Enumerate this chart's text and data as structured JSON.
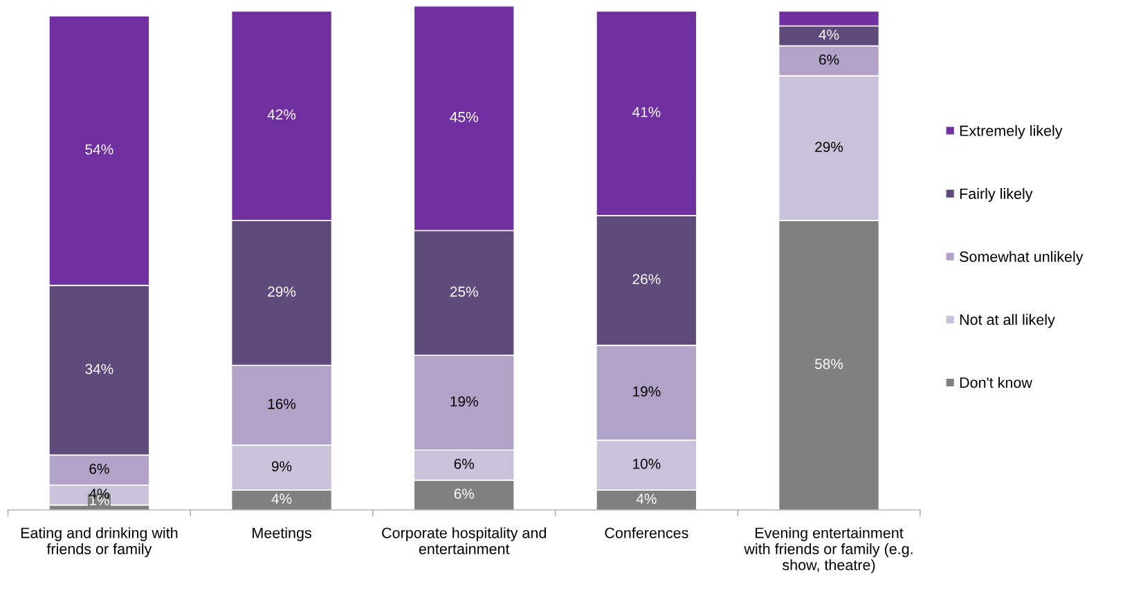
{
  "chart_data": {
    "type": "bar",
    "stacked": true,
    "data_labels": false,
    "legend": "right",
    "marker": "square",
    "grid": false,
    "categories": [
      "Eating and drinking with\nfriends or family",
      "Meetings",
      "Corporate hospitality and\nentertainment",
      "Conferences",
      "Evening entertainment\nwith friends or family (e.g.\nshow, theatre)"
    ],
    "series": [
      {
        "name": "Don't know",
        "color": "#808080",
        "values": [
          1,
          4,
          6,
          4,
          58
        ],
        "value_labels": [
          "1%",
          "4%",
          "6%",
          "4%",
          "58%"
        ]
      },
      {
        "name": "Not at all likely",
        "color": "#ccc1da",
        "values": [
          4,
          9,
          6,
          10,
          29
        ],
        "value_labels": [
          "4%",
          "9%",
          "6%",
          "10%",
          "29%"
        ]
      },
      {
        "name": "Somewhat unlikely",
        "color": "#b3a2c7",
        "values": [
          6,
          16,
          19,
          19,
          6
        ],
        "value_labels": [
          "6%",
          "16%",
          "19%",
          "19%",
          "6%"
        ]
      },
      {
        "name": "Fairly likely",
        "color": "#604a7b",
        "values": [
          34,
          29,
          25,
          26,
          4
        ],
        "value_labels": [
          "34%",
          "29%",
          "25%",
          "26%",
          "4%"
        ]
      },
      {
        "name": "Extremely likely",
        "color": "#7030a0",
        "values": [
          54,
          42,
          45,
          41,
          3
        ],
        "value_labels": [
          "54%",
          "42%",
          "45%",
          "41%",
          null
        ]
      }
    ]
  }
}
